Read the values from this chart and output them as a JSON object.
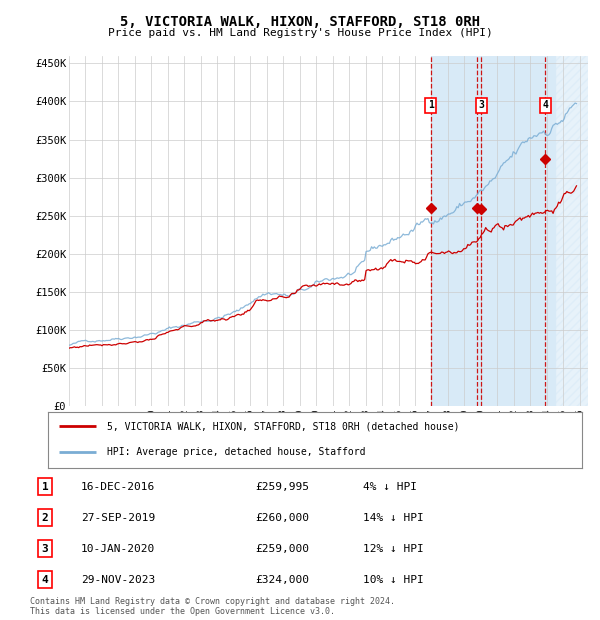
{
  "title": "5, VICTORIA WALK, HIXON, STAFFORD, ST18 0RH",
  "subtitle": "Price paid vs. HM Land Registry's House Price Index (HPI)",
  "legend_label_red": "5, VICTORIA WALK, HIXON, STAFFORD, ST18 0RH (detached house)",
  "legend_label_blue": "HPI: Average price, detached house, Stafford",
  "footer_line1": "Contains HM Land Registry data © Crown copyright and database right 2024.",
  "footer_line2": "This data is licensed under the Open Government Licence v3.0.",
  "transactions": [
    {
      "label": "1",
      "date": "16-DEC-2016",
      "price": "£259,995",
      "hpi_pct": "4% ↓ HPI",
      "date_numeric": 2016.96,
      "price_val": 259995,
      "show_box": true
    },
    {
      "label": "2",
      "date": "27-SEP-2019",
      "price": "£260,000",
      "hpi_pct": "14% ↓ HPI",
      "date_numeric": 2019.74,
      "price_val": 260000,
      "show_box": false
    },
    {
      "label": "3",
      "date": "10-JAN-2020",
      "price": "£259,000",
      "hpi_pct": "12% ↓ HPI",
      "date_numeric": 2020.03,
      "price_val": 259000,
      "show_box": true
    },
    {
      "label": "4",
      "date": "29-NOV-2023",
      "price": "£324,000",
      "hpi_pct": "10% ↓ HPI",
      "date_numeric": 2023.91,
      "price_val": 324000,
      "show_box": true
    }
  ],
  "xmin": 1995.0,
  "xmax": 2026.5,
  "ymin": 0,
  "ymax": 460000,
  "yticks": [
    0,
    50000,
    100000,
    150000,
    200000,
    250000,
    300000,
    350000,
    400000,
    450000
  ],
  "ytick_labels": [
    "£0",
    "£50K",
    "£100K",
    "£150K",
    "£200K",
    "£250K",
    "£300K",
    "£350K",
    "£400K",
    "£450K"
  ],
  "xticks": [
    1995,
    1996,
    1997,
    1998,
    1999,
    2000,
    2001,
    2002,
    2003,
    2004,
    2005,
    2006,
    2007,
    2008,
    2009,
    2010,
    2011,
    2012,
    2013,
    2014,
    2015,
    2016,
    2017,
    2018,
    2019,
    2020,
    2021,
    2022,
    2023,
    2024,
    2025,
    2026
  ],
  "shade_start": 2016.96,
  "hatch_start": 2024.5,
  "hatch_end": 2026.5,
  "red_color": "#cc0000",
  "blue_color": "#7aadd4",
  "shade_color": "#ddeeff",
  "grid_color": "#cccccc",
  "background_color": "#ffffff"
}
